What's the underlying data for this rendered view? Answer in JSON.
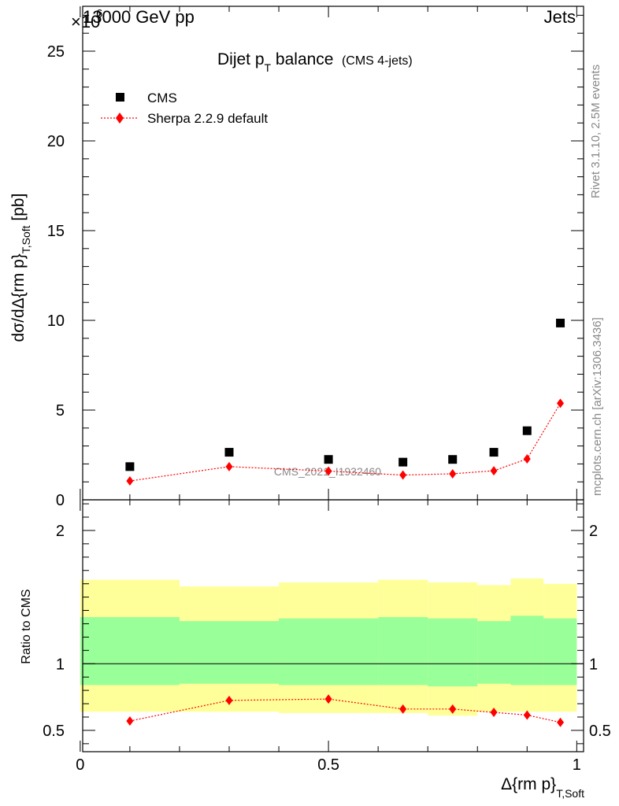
{
  "header": {
    "energy_label": "13000 GeV pp",
    "process_label": "Jets",
    "exponent_marker": "×10",
    "exponent_power": "6"
  },
  "side_labels": {
    "rivet": "Rivet 3.1.10,  2.5M events",
    "source": "mcplots.cern.ch [arXiv:1306.3436]"
  },
  "watermark": "CMS_2021_I1932460",
  "chart_data": [
    {
      "type": "scatter",
      "panel": "main",
      "title": {
        "main": "Dijet p",
        "main_sub": "T",
        "main_rest": " balance",
        "small": "(CMS 4-jets)"
      },
      "ylabel": {
        "main": "dσ/dΔ{rm p}",
        "sub": "T,Soft",
        "unit": " [pb]"
      },
      "ylim": [
        0,
        27.5
      ],
      "y_scale_note": "values in units of 10^6 pb",
      "yticks": [
        0,
        5,
        10,
        15,
        20,
        25
      ],
      "xlim": [
        0,
        1
      ],
      "x": [
        0.1,
        0.3,
        0.5,
        0.65,
        0.75,
        0.833,
        0.9,
        0.967
      ],
      "series": [
        {
          "name": "CMS",
          "marker": "square",
          "color": "#000000",
          "values": [
            1.85,
            2.65,
            2.25,
            2.1,
            2.25,
            2.65,
            3.85,
            9.85
          ]
        },
        {
          "name": "Sherpa 2.2.9 default",
          "marker": "diamond",
          "line": "dotted",
          "color": "#ff0000",
          "values": [
            1.05,
            1.85,
            1.6,
            1.38,
            1.45,
            1.62,
            2.28,
            5.38
          ]
        }
      ],
      "legend_position": "top-left"
    },
    {
      "type": "line",
      "panel": "ratio",
      "ylabel": "Ratio to CMS",
      "xlabel": {
        "main": "Δ{rm p}",
        "sub": "T,Soft"
      },
      "ylim": [
        0.34,
        2.23
      ],
      "yticks": [
        0.5,
        1,
        2
      ],
      "ytick_labels": [
        "0.5",
        "1",
        "2"
      ],
      "xlim": [
        0,
        1
      ],
      "xticks": [
        0,
        0.5,
        1
      ],
      "xtick_labels": [
        "0",
        "0.5",
        "1"
      ],
      "reference_line": 1,
      "bands": {
        "bin_edges": [
          0,
          0.2,
          0.4,
          0.6,
          0.7,
          0.8,
          0.867,
          0.933,
          1
        ],
        "outer": {
          "color": "#ffff99",
          "low": [
            0.64,
            0.64,
            0.63,
            0.63,
            0.61,
            0.64,
            0.64,
            0.64
          ],
          "high": [
            1.63,
            1.58,
            1.61,
            1.63,
            1.61,
            1.59,
            1.64,
            1.6
          ]
        },
        "inner": {
          "color": "#99ff99",
          "low": [
            0.84,
            0.85,
            0.84,
            0.84,
            0.83,
            0.85,
            0.84,
            0.84
          ],
          "high": [
            1.35,
            1.32,
            1.34,
            1.35,
            1.34,
            1.32,
            1.36,
            1.34
          ]
        }
      },
      "x": [
        0.1,
        0.3,
        0.5,
        0.65,
        0.75,
        0.833,
        0.9,
        0.967
      ],
      "series": [
        {
          "name": "Sherpa 2.2.9 default",
          "marker": "diamond",
          "line": "dotted",
          "color": "#ff0000",
          "values": [
            0.57,
            0.725,
            0.735,
            0.66,
            0.66,
            0.635,
            0.615,
            0.56
          ]
        }
      ]
    }
  ]
}
